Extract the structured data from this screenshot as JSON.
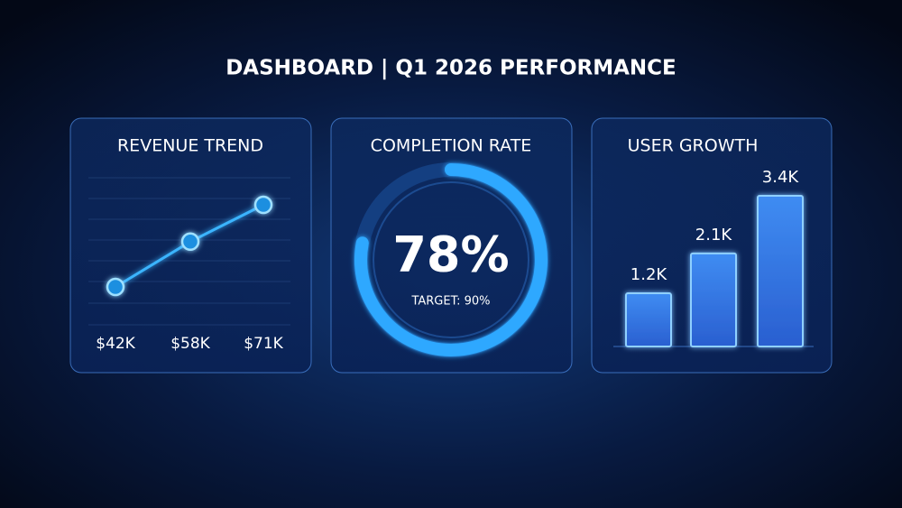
{
  "header": {
    "title": "DASHBOARD | Q1 2026 PERFORMANCE"
  },
  "chart_data": [
    {
      "type": "line",
      "title": "REVENUE TREND",
      "categories": [
        null,
        null,
        null
      ],
      "values": [
        42,
        58,
        71
      ],
      "value_labels": [
        "$42K",
        "$58K",
        "$71K"
      ],
      "color": "#3ab4ff"
    },
    {
      "type": "gauge",
      "title": "COMPLETION RATE",
      "value": 78,
      "value_label": "78%",
      "ylim": [
        0,
        100
      ],
      "note": "TARGET: 90%",
      "color": "#2fa8ff"
    },
    {
      "type": "bar",
      "title": "USER GROWTH",
      "categories": [
        null,
        null,
        null
      ],
      "values": [
        1.2,
        2.1,
        3.4
      ],
      "value_labels": [
        "1.2K",
        "2.1K",
        "3.4K"
      ],
      "color": "#3a8cf0"
    }
  ]
}
